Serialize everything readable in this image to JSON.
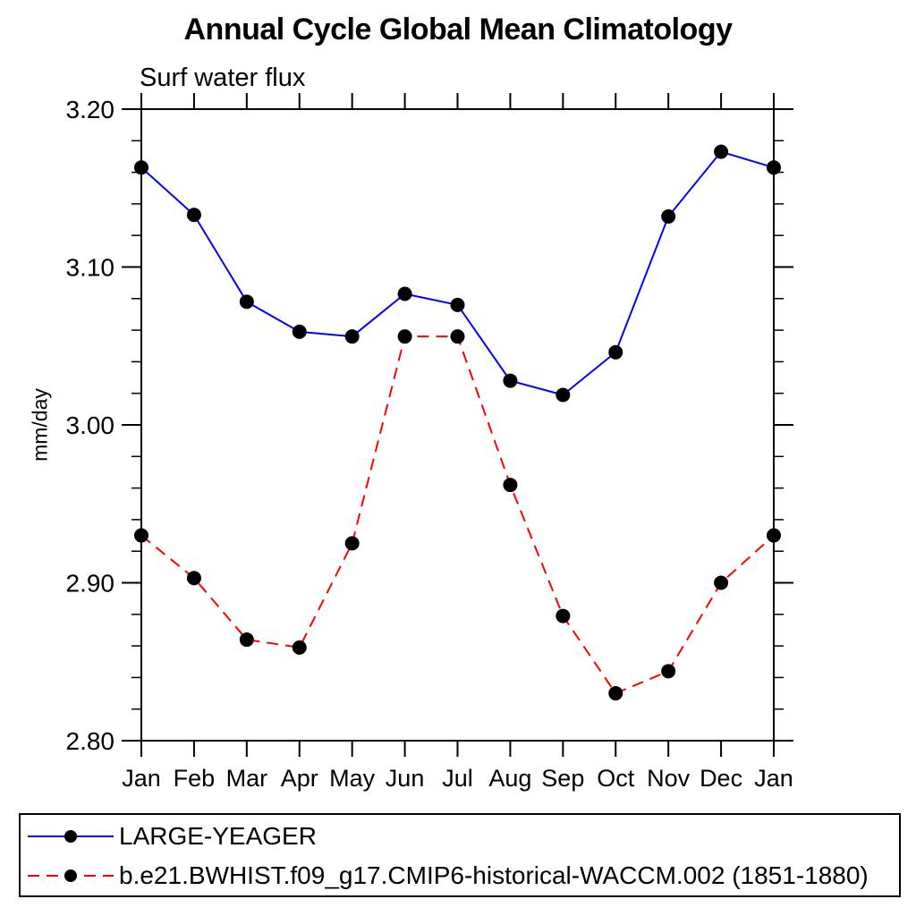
{
  "chart_data": {
    "type": "line",
    "title": "Annual Cycle Global Mean Climatology",
    "subtitle": "Surf water flux",
    "xlabel": "",
    "ylabel": "mm/day",
    "categories": [
      "Jan",
      "Feb",
      "Mar",
      "Apr",
      "May",
      "Jun",
      "Jul",
      "Aug",
      "Sep",
      "Oct",
      "Nov",
      "Dec",
      "Jan"
    ],
    "series": [
      {
        "name": "LARGE-YEAGER",
        "color": "#0000ff",
        "line_style": "solid",
        "marker": "filled-black-circle",
        "values": [
          3.163,
          3.133,
          3.078,
          3.059,
          3.056,
          3.083,
          3.076,
          3.028,
          3.019,
          3.046,
          3.132,
          3.173,
          3.163
        ]
      },
      {
        "name": "b.e21.BWHIST.f09_g17.CMIP6-historical-WACCM.002 (1851-1880)",
        "color": "#ff0000",
        "line_style": "dashed",
        "marker": "filled-black-circle",
        "values": [
          2.93,
          2.903,
          2.864,
          2.859,
          2.925,
          3.056,
          3.056,
          2.962,
          2.879,
          2.83,
          2.844,
          2.9,
          2.93
        ]
      }
    ],
    "ylim": [
      2.8,
      3.2
    ],
    "ytick_values": [
      3.2,
      3.1,
      3.0,
      2.9,
      2.8
    ],
    "ytick_labels": [
      "3.20",
      "3.10",
      "3.00",
      "2.90",
      "2.80"
    ],
    "yminor_step": 0.02,
    "grid": "off",
    "legend": {
      "position": "bottom",
      "boxed": true
    },
    "axis_color": "#000000",
    "marker_color": "#000000"
  }
}
